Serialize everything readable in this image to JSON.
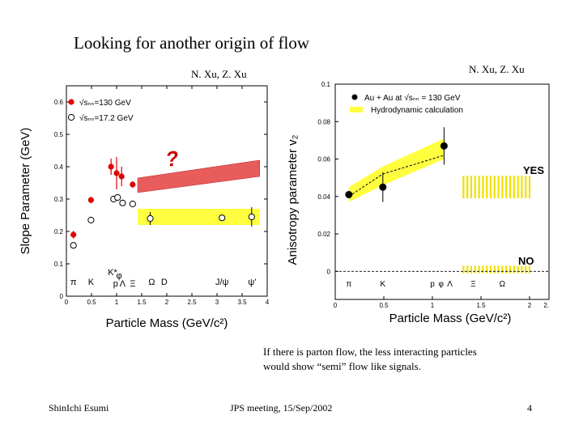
{
  "slide": {
    "title": "Looking for another origin of flow",
    "citation_left": "N. Xu, Z. Xu",
    "citation_right": "N. Xu, Z. Xu",
    "caption_line1": "If there is parton flow, the less interacting particles",
    "caption_line2": "would show “semi” flow like signals.",
    "footer_author": "ShinIchi Esumi",
    "footer_meeting": "JPS meeting, 15/Sep/2002",
    "footer_page": "4"
  },
  "colors": {
    "red_marker": "#e00000",
    "red_band": "#e85c5c",
    "yellow_band": "#ffff40",
    "yellow_bars": "#f0e000",
    "question": "#c80000"
  },
  "chart_data": [
    {
      "type": "scatter",
      "title": "",
      "xlabel": "Particle Mass (GeV/c²)",
      "ylabel": "Slope Parameter (GeV)",
      "xlim": [
        0,
        4
      ],
      "ylim": [
        0,
        0.65
      ],
      "xticks": [
        "0",
        "0.5",
        "1",
        "1.5",
        "2",
        "2.5",
        "3",
        "3.5",
        "4"
      ],
      "yticks": [
        "0",
        "0.1",
        "0.2",
        "0.3",
        "0.4",
        "0.5",
        "0.6"
      ],
      "legend": [
        "√sₙₙ=130 GeV",
        "√sₙₙ=17.2 GeV"
      ],
      "particle_labels": [
        "π",
        "K",
        "K*",
        "φ",
        "p",
        "Λ",
        "Ξ",
        "Ω",
        "D",
        "J/ψ",
        "ψ'"
      ],
      "series": [
        {
          "name": "130 GeV",
          "x": [
            0.14,
            0.49,
            0.89,
            1.0,
            1.1,
            1.32
          ],
          "y": [
            0.19,
            0.297,
            0.4,
            0.38,
            0.37,
            0.345
          ],
          "err": [
            0.012,
            0.01,
            0.025,
            0.05,
            0.03,
            0.01
          ]
        },
        {
          "name": "17.2 GeV",
          "x": [
            0.14,
            0.49,
            0.94,
            1.02,
            1.12,
            1.32,
            1.67,
            3.1,
            3.69
          ],
          "y": [
            0.157,
            0.235,
            0.3,
            0.305,
            0.288,
            0.285,
            0.24,
            0.242,
            0.245
          ],
          "err": [
            0,
            0,
            0,
            0,
            0,
            0,
            0.02,
            0,
            0.03
          ]
        }
      ],
      "bands": [
        {
          "name": "red",
          "x": [
            1.42,
            3.85
          ],
          "lower": [
            0.32,
            0.37
          ],
          "upper": [
            0.365,
            0.42
          ]
        },
        {
          "name": "yellow",
          "x": [
            1.42,
            3.85
          ],
          "lower": [
            0.22,
            0.22
          ],
          "upper": [
            0.27,
            0.27
          ]
        }
      ],
      "annotation": "?"
    },
    {
      "type": "scatter",
      "title": "",
      "xlabel": "Particle Mass (GeV/c²)",
      "ylabel": "Anisotropy parameter v₂",
      "xlim": [
        0,
        2.2
      ],
      "ylim": [
        -0.015,
        0.1
      ],
      "xticks": [
        "0",
        "0.5",
        "1",
        "1.5",
        "2",
        "2."
      ],
      "yticks": [
        "0",
        "0.02",
        "0.04",
        "0.06",
        "0.08",
        "0.1"
      ],
      "legend": [
        "Au + Au at √sₙₙ = 130 GeV",
        "Hydrodynamic calculation"
      ],
      "particle_labels": [
        "π",
        "K",
        "p",
        "φ",
        "Λ",
        "Ξ",
        "Ω"
      ],
      "series": [
        {
          "name": "Au + Au",
          "x": [
            0.14,
            0.49,
            1.12
          ],
          "y": [
            0.041,
            0.045,
            0.067
          ],
          "err": [
            0.002,
            0.008,
            0.01
          ]
        }
      ],
      "hydro_band": {
        "x": [
          0.14,
          0.49,
          1.12
        ],
        "lower": [
          0.037,
          0.046,
          0.06
        ],
        "upper": [
          0.045,
          0.056,
          0.071
        ]
      },
      "hydro_line": {
        "x": [
          0.14,
          0.49,
          1.12
        ],
        "y": [
          0.04,
          0.052,
          0.062
        ]
      },
      "yes_region": {
        "x": [
          1.32,
          2.0
        ],
        "y": [
          0.039,
          0.051
        ],
        "label": "YES"
      },
      "no_region": {
        "x": [
          1.32,
          2.0
        ],
        "y": [
          -0.001,
          0.003
        ],
        "label": "NO"
      }
    }
  ]
}
